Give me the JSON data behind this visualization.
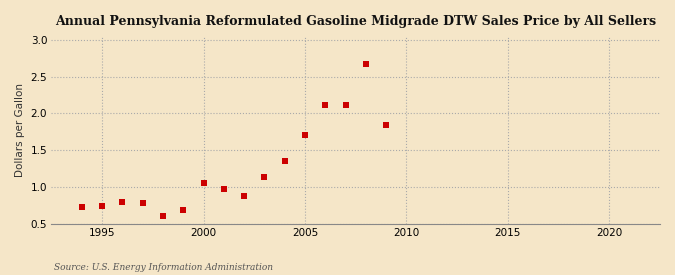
{
  "title": "Annual Pennsylvania Reformulated Gasoline Midgrade DTW Sales Price by All Sellers",
  "ylabel": "Dollars per Gallon",
  "source": "Source: U.S. Energy Information Administration",
  "background_color": "#f5e6c8",
  "plot_bg_color": "#f5e6c8",
  "marker_color": "#cc0000",
  "grid_color": "#aaaaaa",
  "xlim": [
    1992.5,
    2022.5
  ],
  "ylim": [
    0.5,
    3.05
  ],
  "yticks": [
    0.5,
    1.0,
    1.5,
    2.0,
    2.5,
    3.0
  ],
  "xticks": [
    1995,
    2000,
    2005,
    2010,
    2015,
    2020
  ],
  "data_x": [
    1994,
    1995,
    1996,
    1997,
    1998,
    1999,
    2000,
    2001,
    2002,
    2003,
    2004,
    2005,
    2006,
    2007,
    2008,
    2009
  ],
  "data_y": [
    0.73,
    0.74,
    0.8,
    0.78,
    0.6,
    0.69,
    1.06,
    0.97,
    0.88,
    1.13,
    1.35,
    1.7,
    2.11,
    2.12,
    2.67,
    1.84
  ]
}
